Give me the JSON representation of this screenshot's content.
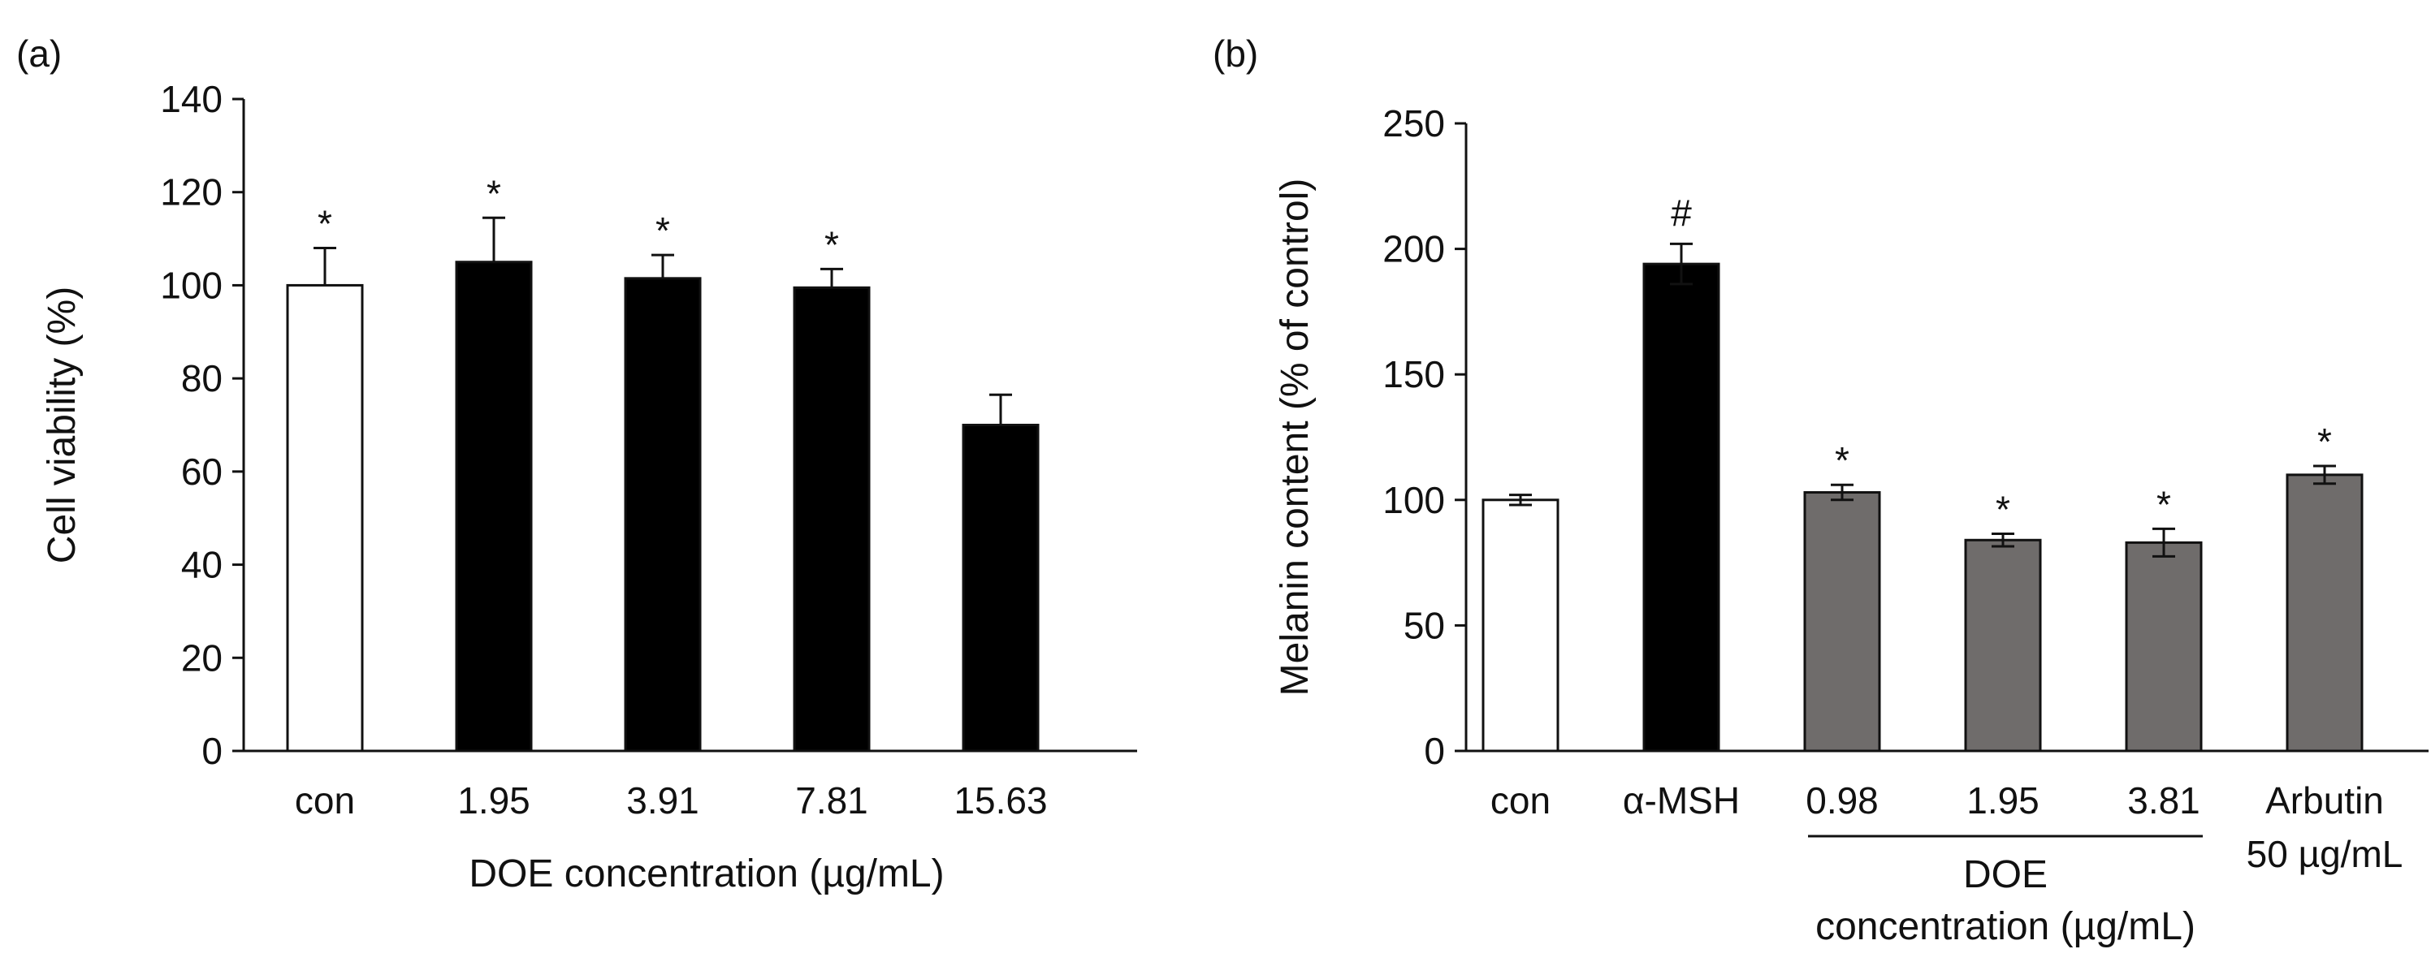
{
  "chart_data": [
    {
      "type": "bar",
      "panel_label": "(a)",
      "title": "",
      "xlabel": "DOE concentration (µg/mL)",
      "ylabel": "Cell viability (%)",
      "ylim": [
        0,
        140
      ],
      "yticks": [
        "0",
        "20",
        "40",
        "60",
        "80",
        "100",
        "120",
        "140"
      ],
      "categories": [
        "con",
        "1.95",
        "3.91",
        "7.81",
        "15.63"
      ],
      "values": [
        100,
        105,
        101.5,
        99.5,
        70
      ],
      "errors": [
        8,
        9.5,
        5,
        4,
        6.5
      ],
      "error_style": "upper",
      "annotations": [
        "*",
        "*",
        "*",
        "*",
        ""
      ],
      "bar_colors": [
        "#ffffff",
        "#000000",
        "#000000",
        "#000000",
        "#000000"
      ],
      "grid": false
    },
    {
      "type": "bar",
      "panel_label": "(b)",
      "title": "",
      "xlabel": "",
      "ylabel": "Melanin content (% of control)",
      "ylim": [
        0,
        250
      ],
      "yticks": [
        "0",
        "50",
        "100",
        "150",
        "200",
        "250"
      ],
      "categories": [
        "con",
        "α-MSH",
        "0.98",
        "1.95",
        "3.81",
        "Arbutin"
      ],
      "category_sublabels": [
        "",
        "",
        "",
        "",
        "",
        "50 µg/mL"
      ],
      "group_label_lines": [
        "DOE",
        "concentration (µg/mL)"
      ],
      "values": [
        100,
        194,
        103,
        84,
        83,
        110
      ],
      "errors": [
        2,
        8,
        3,
        2.5,
        5.5,
        3.5
      ],
      "error_style": "both",
      "annotations": [
        "",
        "#",
        "*",
        "*",
        "*",
        "*"
      ],
      "bar_colors": [
        "#ffffff",
        "#000000",
        "#6f6c6b",
        "#6f6c6b",
        "#6f6c6b",
        "#6f6c6b"
      ],
      "grid": false
    }
  ]
}
